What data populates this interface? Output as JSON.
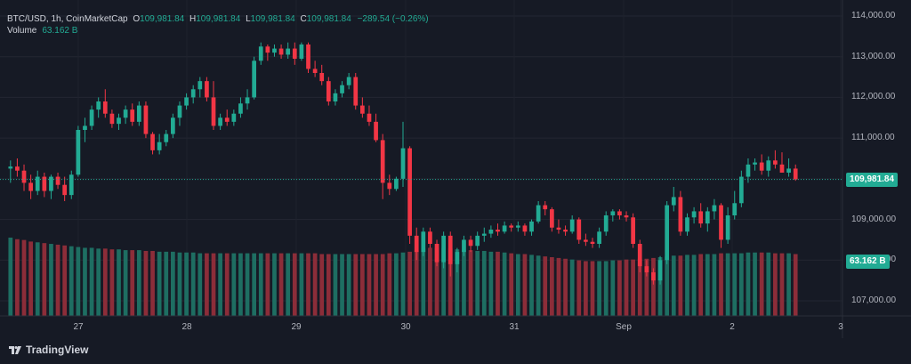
{
  "legend": {
    "symbol": "BTC/USD, 1h, CoinMarketCap",
    "o_label": "O",
    "o_value": "109,981.84",
    "h_label": "H",
    "h_value": "109,981.84",
    "l_label": "L",
    "l_value": "109,981.84",
    "c_label": "C",
    "c_value": "109,981.84",
    "change": "−289.54 (−0.26%)",
    "volume_label": "Volume",
    "volume_value": "63.162 B"
  },
  "price_badge": "109,981.84",
  "volume_badge": "63.162 B",
  "y_axis": [
    "114,000.00",
    "113,000.00",
    "112,000.00",
    "111,000.00",
    "110,000.00",
    "109,000.00",
    "108,000.00",
    "107,000.00"
  ],
  "x_axis": [
    "27",
    "28",
    "29",
    "30",
    "31",
    "Sep",
    "2",
    "3"
  ],
  "brand": "TradingView",
  "colors": {
    "up": "#22ab94",
    "down": "#f23645",
    "vol_up": "#1e6e62",
    "vol_down": "#8c2d39",
    "bg": "#161a25"
  },
  "chart_data": {
    "type": "candlestick",
    "y_range": [
      106700,
      114200
    ],
    "last_price": 109981.84,
    "candles": [
      [
        110250,
        110450,
        109900,
        110300
      ],
      [
        110300,
        110500,
        110050,
        110200
      ],
      [
        110200,
        110350,
        109700,
        109900
      ],
      [
        109900,
        110100,
        109500,
        109700
      ],
      [
        109700,
        110200,
        109600,
        110050
      ],
      [
        110050,
        110150,
        109550,
        109700
      ],
      [
        109700,
        110100,
        109500,
        110050
      ],
      [
        110050,
        110150,
        109750,
        109850
      ],
      [
        109850,
        110050,
        109450,
        109600
      ],
      [
        109600,
        110200,
        109500,
        110100
      ],
      [
        110100,
        111300,
        110050,
        111200
      ],
      [
        111200,
        111500,
        110900,
        111300
      ],
      [
        111300,
        111800,
        111200,
        111700
      ],
      [
        111700,
        112000,
        111500,
        111900
      ],
      [
        111900,
        112200,
        111500,
        111600
      ],
      [
        111600,
        111700,
        111250,
        111350
      ],
      [
        111350,
        111600,
        111200,
        111500
      ],
      [
        111500,
        111800,
        111350,
        111700
      ],
      [
        111700,
        111850,
        111300,
        111400
      ],
      [
        111400,
        111900,
        111300,
        111800
      ],
      [
        111800,
        111900,
        111000,
        111100
      ],
      [
        111100,
        111150,
        110600,
        110700
      ],
      [
        110700,
        111100,
        110600,
        110900
      ],
      [
        110900,
        111200,
        110800,
        111100
      ],
      [
        111100,
        111600,
        111000,
        111500
      ],
      [
        111500,
        111900,
        111300,
        111800
      ],
      [
        111800,
        112100,
        111700,
        112000
      ],
      [
        112000,
        112300,
        111850,
        112200
      ],
      [
        112200,
        112500,
        112000,
        112400
      ],
      [
        112400,
        112500,
        111900,
        112000
      ],
      [
        112000,
        112400,
        111200,
        111300
      ],
      [
        111300,
        111600,
        111200,
        111500
      ],
      [
        111500,
        111700,
        111300,
        111400
      ],
      [
        111400,
        111700,
        111300,
        111600
      ],
      [
        111600,
        112000,
        111500,
        111850
      ],
      [
        111850,
        112200,
        111700,
        112000
      ],
      [
        112000,
        113000,
        111950,
        112900
      ],
      [
        112900,
        113350,
        112800,
        113250
      ],
      [
        113250,
        113300,
        112900,
        113100
      ],
      [
        113100,
        113300,
        113000,
        113200
      ],
      [
        113200,
        113300,
        112950,
        113050
      ],
      [
        113050,
        113350,
        112950,
        113200
      ],
      [
        113200,
        113350,
        112800,
        112950
      ],
      [
        112950,
        113350,
        112900,
        113300
      ],
      [
        113300,
        113350,
        112600,
        112700
      ],
      [
        112700,
        112900,
        112500,
        112600
      ],
      [
        112600,
        112800,
        112300,
        112400
      ],
      [
        112400,
        112500,
        111800,
        111900
      ],
      [
        111900,
        112200,
        111800,
        112100
      ],
      [
        112100,
        112400,
        112000,
        112300
      ],
      [
        112300,
        112600,
        112200,
        112500
      ],
      [
        112500,
        112600,
        111700,
        111800
      ],
      [
        111800,
        112000,
        111500,
        111600
      ],
      [
        111600,
        111800,
        111300,
        111400
      ],
      [
        111400,
        111600,
        110900,
        110950
      ],
      [
        110950,
        111100,
        109500,
        109900
      ],
      [
        109900,
        110100,
        109600,
        109750
      ],
      [
        109750,
        110050,
        109700,
        110000
      ],
      [
        110000,
        111400,
        109800,
        110750
      ],
      [
        110750,
        110800,
        108400,
        108600
      ],
      [
        108600,
        108800,
        108000,
        108200
      ],
      [
        108200,
        108800,
        108100,
        108700
      ],
      [
        108700,
        108800,
        108300,
        108400
      ],
      [
        108400,
        108500,
        107850,
        107950
      ],
      [
        107950,
        108700,
        107800,
        108600
      ],
      [
        108600,
        108700,
        107600,
        107900
      ],
      [
        107900,
        108300,
        107700,
        108200
      ],
      [
        108200,
        108600,
        108100,
        108500
      ],
      [
        108500,
        108600,
        108200,
        108350
      ],
      [
        108350,
        108700,
        108250,
        108600
      ],
      [
        108600,
        108800,
        108450,
        108650
      ],
      [
        108650,
        108850,
        108550,
        108750
      ],
      [
        108750,
        108900,
        108600,
        108700
      ],
      [
        108700,
        108950,
        108650,
        108850
      ],
      [
        108850,
        108900,
        108700,
        108800
      ],
      [
        108800,
        108950,
        108700,
        108850
      ],
      [
        108850,
        108900,
        108600,
        108700
      ],
      [
        108700,
        109000,
        108600,
        108950
      ],
      [
        108950,
        109450,
        108900,
        109350
      ],
      [
        109350,
        109450,
        109100,
        109250
      ],
      [
        109250,
        109300,
        108700,
        108800
      ],
      [
        108800,
        109000,
        108650,
        108750
      ],
      [
        108750,
        108850,
        108600,
        108700
      ],
      [
        108700,
        109100,
        108650,
        109000
      ],
      [
        109000,
        109050,
        108400,
        108500
      ],
      [
        108500,
        108650,
        108350,
        108450
      ],
      [
        108450,
        108550,
        108300,
        108400
      ],
      [
        108400,
        108800,
        108300,
        108700
      ],
      [
        108700,
        109200,
        108600,
        109100
      ],
      [
        109100,
        109250,
        108950,
        109200
      ],
      [
        109200,
        109250,
        109000,
        109100
      ],
      [
        109100,
        109200,
        108950,
        109050
      ],
      [
        109050,
        109150,
        108300,
        108400
      ],
      [
        108400,
        108500,
        107700,
        107850
      ],
      [
        107850,
        108000,
        107600,
        107700
      ],
      [
        107700,
        107800,
        107400,
        107500
      ],
      [
        107500,
        108100,
        107400,
        108000
      ],
      [
        108000,
        109450,
        107900,
        109350
      ],
      [
        109350,
        109800,
        109200,
        109550
      ],
      [
        109550,
        109700,
        108600,
        108700
      ],
      [
        108700,
        109150,
        108600,
        109050
      ],
      [
        109050,
        109300,
        108900,
        109200
      ],
      [
        109200,
        109400,
        108800,
        108900
      ],
      [
        108900,
        109300,
        108700,
        109200
      ],
      [
        109200,
        109500,
        109000,
        109350
      ],
      [
        109350,
        109400,
        108300,
        108500
      ],
      [
        108500,
        109300,
        108400,
        109100
      ],
      [
        109100,
        109700,
        109000,
        109400
      ],
      [
        109400,
        110200,
        109300,
        110050
      ],
      [
        110050,
        110500,
        109900,
        110350
      ],
      [
        110350,
        110500,
        110200,
        110400
      ],
      [
        110400,
        110600,
        110100,
        110200
      ],
      [
        110200,
        110550,
        110050,
        110450
      ],
      [
        110450,
        110700,
        110250,
        110350
      ],
      [
        110350,
        110650,
        110150,
        110150
      ],
      [
        110150,
        110500,
        110050,
        110250
      ],
      [
        110250,
        110350,
        109950,
        109982
      ]
    ],
    "volume": [
      1.0,
      0.98,
      0.97,
      0.95,
      0.94,
      0.93,
      0.92,
      0.91,
      0.9,
      0.89,
      0.88,
      0.87,
      0.87,
      0.86,
      0.86,
      0.85,
      0.85,
      0.84,
      0.84,
      0.84,
      0.83,
      0.83,
      0.82,
      0.82,
      0.82,
      0.81,
      0.81,
      0.81,
      0.8,
      0.8,
      0.8,
      0.8,
      0.8,
      0.8,
      0.8,
      0.8,
      0.8,
      0.8,
      0.8,
      0.8,
      0.8,
      0.8,
      0.8,
      0.8,
      0.8,
      0.8,
      0.79,
      0.79,
      0.79,
      0.79,
      0.79,
      0.79,
      0.79,
      0.79,
      0.79,
      0.79,
      0.8,
      0.8,
      0.81,
      0.82,
      0.84,
      0.86,
      0.87,
      0.87,
      0.87,
      0.86,
      0.85,
      0.84,
      0.84,
      0.83,
      0.83,
      0.82,
      0.82,
      0.81,
      0.8,
      0.79,
      0.79,
      0.78,
      0.77,
      0.76,
      0.75,
      0.74,
      0.73,
      0.72,
      0.71,
      0.7,
      0.7,
      0.7,
      0.7,
      0.71,
      0.71,
      0.72,
      0.72,
      0.73,
      0.73,
      0.74,
      0.75,
      0.76,
      0.77,
      0.77,
      0.78,
      0.78,
      0.79,
      0.79,
      0.79,
      0.8,
      0.8,
      0.8,
      0.8,
      0.81,
      0.81,
      0.81,
      0.81,
      0.8,
      0.8,
      0.8,
      0.79,
      0.79,
      0.79,
      0.78,
      0.78
    ]
  }
}
